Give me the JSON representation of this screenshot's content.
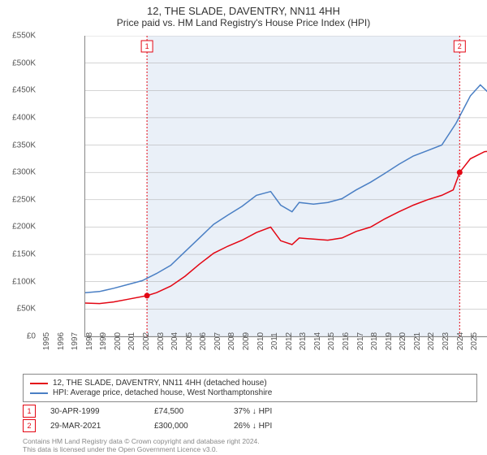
{
  "title": "12, THE SLADE, DAVENTRY, NN11 4HH",
  "subtitle": "Price paid vs. HM Land Registry's House Price Index (HPI)",
  "chart": {
    "type": "line",
    "background_color": "#ffffff",
    "shaded_band_color": "#eaf0f8",
    "grid_color": "#aaaaaa",
    "x_domain": [
      1995,
      2025.5
    ],
    "y_domain": [
      0,
      550000
    ],
    "y_ticks": [
      0,
      50000,
      100000,
      150000,
      200000,
      250000,
      300000,
      350000,
      400000,
      450000,
      500000,
      550000
    ],
    "y_tick_labels": [
      "£0",
      "£50K",
      "£100K",
      "£150K",
      "£200K",
      "£250K",
      "£300K",
      "£350K",
      "£400K",
      "£450K",
      "£500K",
      "£550K"
    ],
    "x_ticks": [
      1995,
      1996,
      1997,
      1998,
      1999,
      2000,
      2001,
      2002,
      2003,
      2004,
      2005,
      2006,
      2007,
      2008,
      2009,
      2010,
      2011,
      2012,
      2013,
      2014,
      2015,
      2016,
      2017,
      2018,
      2019,
      2020,
      2021,
      2022,
      2023,
      2024,
      2025
    ],
    "shaded_band": {
      "x_start": 1999.33,
      "x_end": 2021.25
    },
    "series": [
      {
        "name": "price_paid",
        "label": "12, THE SLADE, DAVENTRY, NN11 4HH (detached house)",
        "color": "#e30613",
        "line_width": 1.5,
        "points": [
          [
            1995.0,
            61000
          ],
          [
            1996.0,
            60000
          ],
          [
            1997.0,
            63000
          ],
          [
            1998.0,
            68000
          ],
          [
            1999.33,
            74500
          ],
          [
            2000.0,
            80000
          ],
          [
            2001.0,
            92000
          ],
          [
            2002.0,
            110000
          ],
          [
            2003.0,
            132000
          ],
          [
            2004.0,
            152000
          ],
          [
            2005.0,
            165000
          ],
          [
            2006.0,
            176000
          ],
          [
            2007.0,
            190000
          ],
          [
            2008.0,
            200000
          ],
          [
            2008.7,
            175000
          ],
          [
            2009.5,
            168000
          ],
          [
            2010.0,
            180000
          ],
          [
            2011.0,
            178000
          ],
          [
            2012.0,
            176000
          ],
          [
            2013.0,
            180000
          ],
          [
            2014.0,
            192000
          ],
          [
            2015.0,
            200000
          ],
          [
            2016.0,
            215000
          ],
          [
            2017.0,
            228000
          ],
          [
            2018.0,
            240000
          ],
          [
            2019.0,
            250000
          ],
          [
            2020.0,
            258000
          ],
          [
            2020.8,
            268000
          ],
          [
            2021.25,
            300000
          ],
          [
            2022.0,
            325000
          ],
          [
            2023.0,
            338000
          ],
          [
            2024.0,
            340000
          ],
          [
            2025.0,
            345000
          ]
        ]
      },
      {
        "name": "hpi",
        "label": "HPI: Average price, detached house, West Northamptonshire",
        "color": "#4a7fc4",
        "line_width": 1.5,
        "points": [
          [
            1995.0,
            80000
          ],
          [
            1996.0,
            82000
          ],
          [
            1997.0,
            88000
          ],
          [
            1998.0,
            95000
          ],
          [
            1999.0,
            102000
          ],
          [
            2000.0,
            115000
          ],
          [
            2001.0,
            130000
          ],
          [
            2002.0,
            155000
          ],
          [
            2003.0,
            180000
          ],
          [
            2004.0,
            205000
          ],
          [
            2005.0,
            222000
          ],
          [
            2006.0,
            238000
          ],
          [
            2007.0,
            258000
          ],
          [
            2008.0,
            265000
          ],
          [
            2008.7,
            240000
          ],
          [
            2009.5,
            228000
          ],
          [
            2010.0,
            245000
          ],
          [
            2011.0,
            242000
          ],
          [
            2012.0,
            245000
          ],
          [
            2013.0,
            252000
          ],
          [
            2014.0,
            268000
          ],
          [
            2015.0,
            282000
          ],
          [
            2016.0,
            298000
          ],
          [
            2017.0,
            315000
          ],
          [
            2018.0,
            330000
          ],
          [
            2019.0,
            340000
          ],
          [
            2020.0,
            350000
          ],
          [
            2021.0,
            390000
          ],
          [
            2022.0,
            440000
          ],
          [
            2022.7,
            460000
          ],
          [
            2023.3,
            445000
          ],
          [
            2024.0,
            455000
          ],
          [
            2025.0,
            460000
          ]
        ]
      }
    ],
    "sale_markers": [
      {
        "n": "1",
        "x": 1999.33,
        "y": 74500,
        "color": "#e30613"
      },
      {
        "n": "2",
        "x": 2021.25,
        "y": 300000,
        "color": "#e30613"
      }
    ]
  },
  "legend": {
    "rows": [
      {
        "color": "#e30613",
        "label": "12, THE SLADE, DAVENTRY, NN11 4HH (detached house)"
      },
      {
        "color": "#4a7fc4",
        "label": "HPI: Average price, detached house, West Northamptonshire"
      }
    ]
  },
  "sales_table": {
    "rows": [
      {
        "n": "1",
        "color": "#e30613",
        "date": "30-APR-1999",
        "price": "£74,500",
        "pct": "37% ↓ HPI"
      },
      {
        "n": "2",
        "color": "#e30613",
        "date": "29-MAR-2021",
        "price": "£300,000",
        "pct": "26% ↓ HPI"
      }
    ]
  },
  "footer": {
    "line1": "Contains HM Land Registry data © Crown copyright and database right 2024.",
    "line2": "This data is licensed under the Open Government Licence v3.0."
  }
}
